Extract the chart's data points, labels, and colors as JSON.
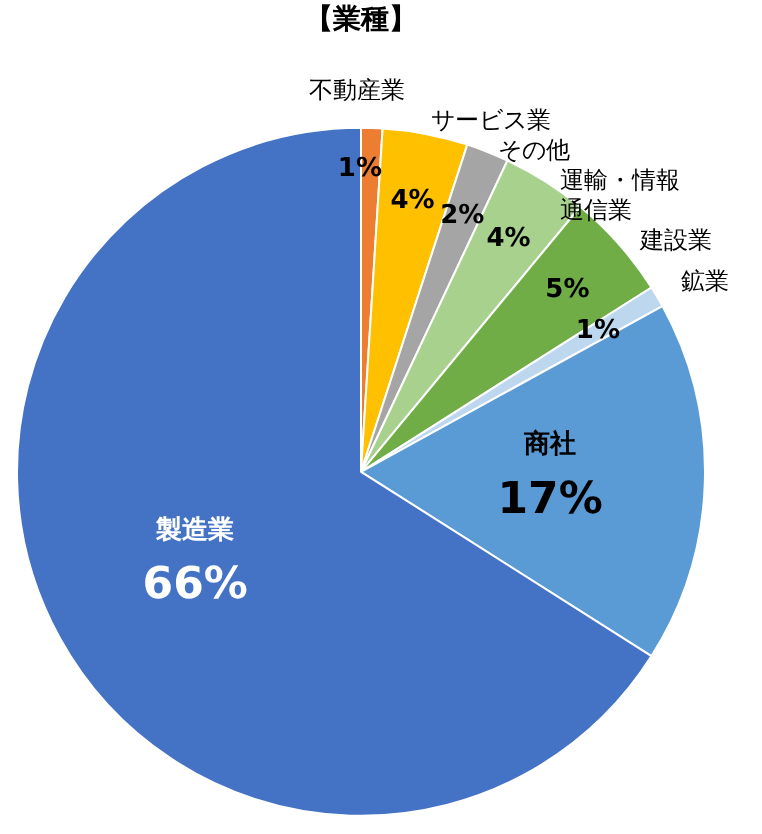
{
  "chart_data": {
    "type": "pie",
    "title": "【業種】",
    "categories": [
      "不動産業",
      "サービス業",
      "その他",
      "運輸・情報通信業",
      "建設業",
      "鉱業",
      "商社",
      "製造業"
    ],
    "values": [
      1,
      4,
      2,
      4,
      5,
      1,
      17,
      66
    ],
    "value_labels": [
      "1%",
      "4%",
      "2%",
      "4%",
      "5%",
      "1%",
      "17%",
      "66%"
    ],
    "colors": [
      "#ed7d31",
      "#ffc000",
      "#a5a5a5",
      "#a9d18e",
      "#70ad47",
      "#bdd7ee",
      "#5b9bd5",
      "#4472c4"
    ],
    "legend": false
  }
}
